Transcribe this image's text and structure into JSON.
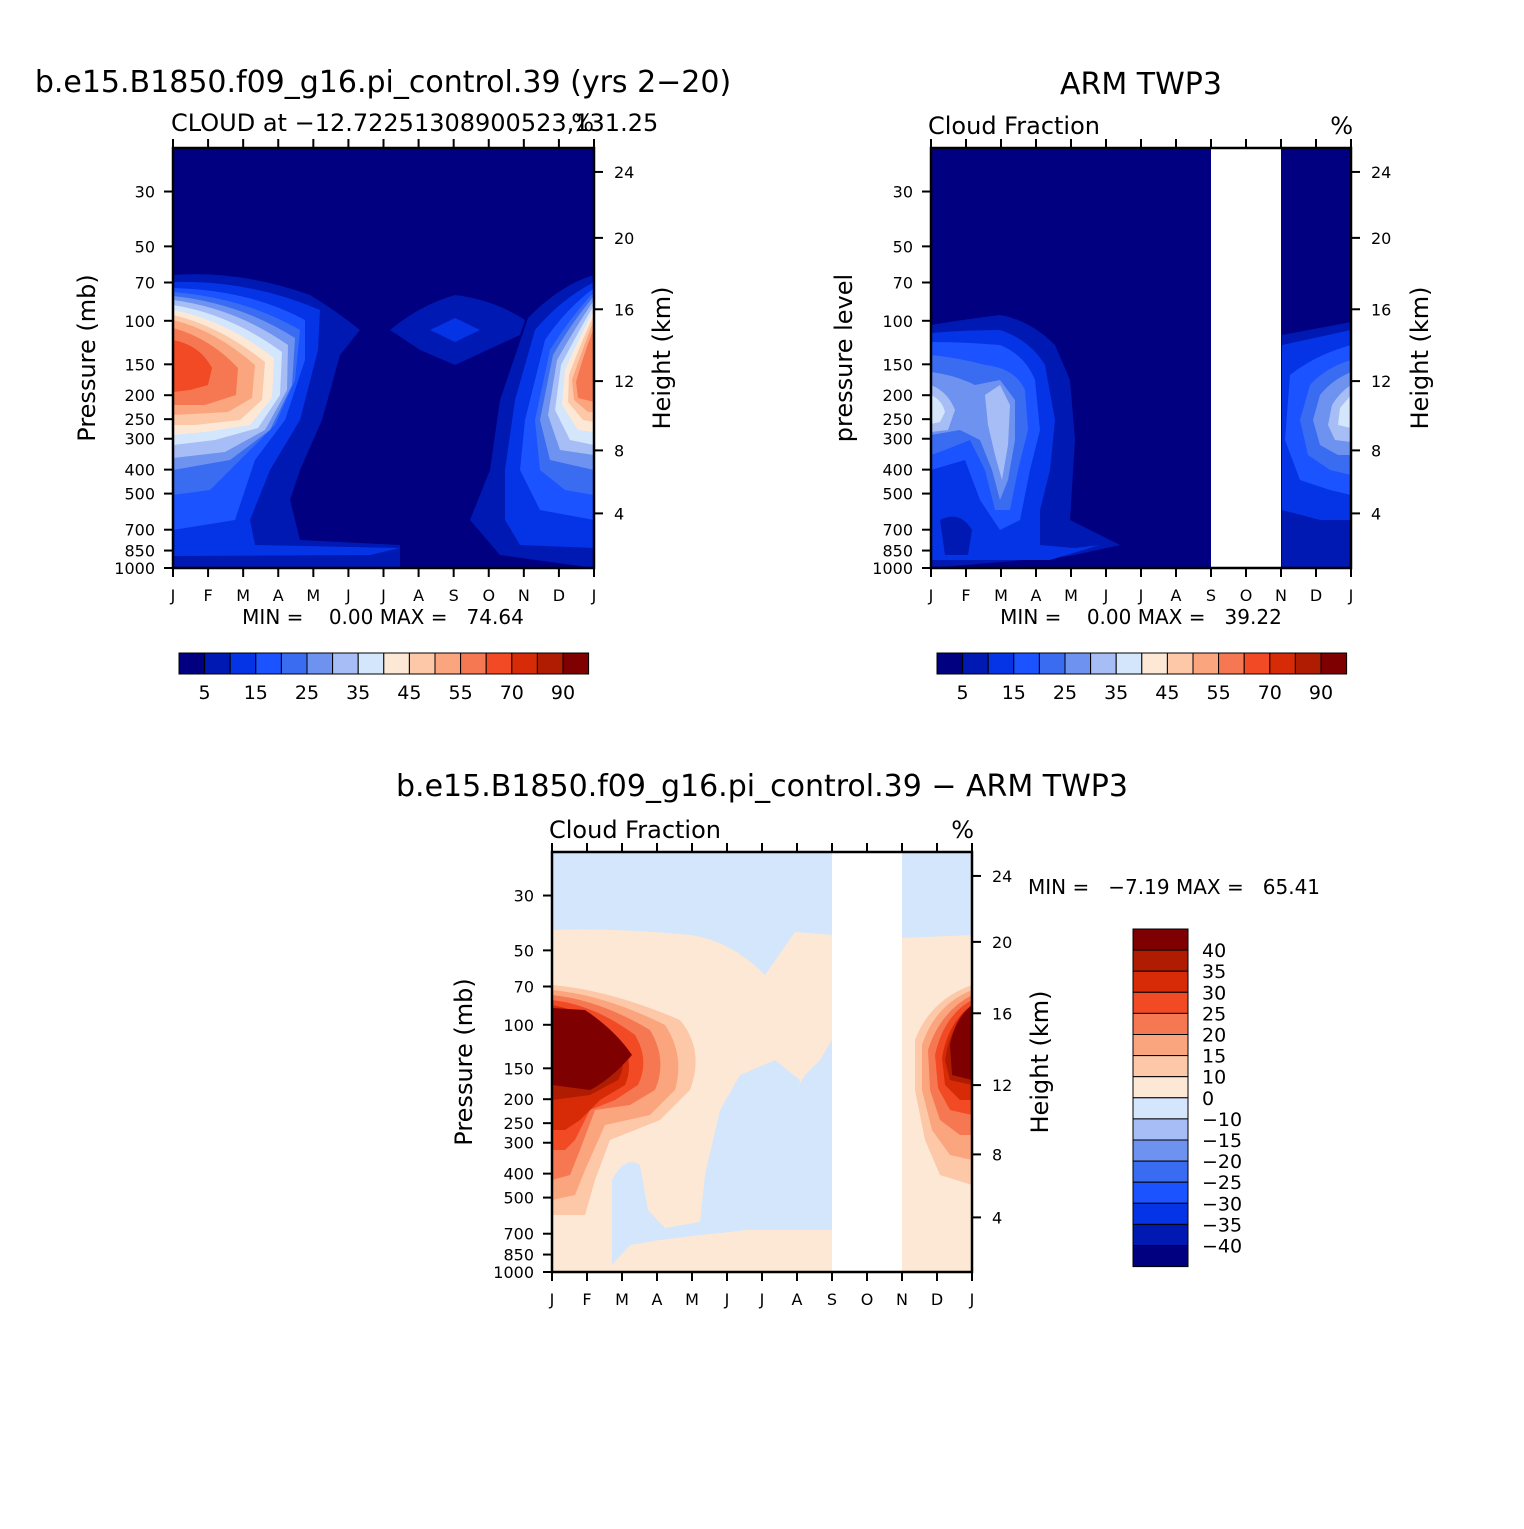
{
  "colors": {
    "seq": [
      "#000080",
      "#0019b3",
      "#0533e6",
      "#1a53ff",
      "#3a6cf2",
      "#6e92f0",
      "#a6bef5",
      "#d4e6fb",
      "#fde8d6",
      "#fcc8a8",
      "#fba57e",
      "#f67853",
      "#f14a25",
      "#d72a07",
      "#b01c02",
      "#7f0000"
    ],
    "diff": [
      "#7f0000",
      "#b01c02",
      "#d72a07",
      "#f14a25",
      "#f67853",
      "#fba57e",
      "#fcc8a8",
      "#fde8d6",
      "#d4e6fb",
      "#a6bef5",
      "#6e92f0",
      "#3a6cf2",
      "#1a53ff",
      "#0533e6",
      "#0019b3",
      "#000080"
    ],
    "missing": "#ffffff"
  },
  "chart_data": [
    {
      "type": "heatmap",
      "title": "b.e15.B1850.f09_g16.pi_control.39 (yrs 2−20)",
      "subtitle_left": "CLOUD at −12.72251308900523,131.25",
      "subtitle_right": "%",
      "x_ticks": [
        "J",
        "F",
        "M",
        "A",
        "M",
        "J",
        "J",
        "A",
        "S",
        "O",
        "N",
        "D",
        "J"
      ],
      "y_label": "Pressure (mb)",
      "y_ticks": [
        "30",
        "50",
        "70",
        "100",
        "150",
        "200",
        "250",
        "300",
        "400",
        "500",
        "700",
        "850",
        "1000"
      ],
      "y2_label": "Height (km)",
      "y2_ticks": [
        "24",
        "20",
        "16",
        "12",
        "8",
        "4"
      ],
      "stats": "MIN =    0.00 MAX =   74.64",
      "colorbar_labels": [
        "5",
        "15",
        "25",
        "35",
        "45",
        "55",
        "70",
        "90"
      ],
      "missing_months": []
    },
    {
      "type": "heatmap",
      "title": "ARM TWP3",
      "subtitle_left": "Cloud Fraction",
      "subtitle_right": "%",
      "x_ticks": [
        "J",
        "F",
        "M",
        "A",
        "M",
        "J",
        "J",
        "A",
        "S",
        "O",
        "N",
        "D",
        "J"
      ],
      "y_label": "pressure level",
      "y_ticks": [
        "30",
        "50",
        "70",
        "100",
        "150",
        "200",
        "250",
        "300",
        "400",
        "500",
        "700",
        "850",
        "1000"
      ],
      "y2_label": "Height (km)",
      "y2_ticks": [
        "24",
        "20",
        "16",
        "12",
        "8",
        "4"
      ],
      "stats": "MIN =    0.00 MAX =   39.22",
      "colorbar_labels": [
        "5",
        "15",
        "25",
        "35",
        "45",
        "55",
        "70",
        "90"
      ],
      "missing_months": [
        "S",
        "O",
        "N"
      ]
    },
    {
      "type": "heatmap",
      "title": "b.e15.B1850.f09_g16.pi_control.39 − ARM TWP3",
      "subtitle_left": "Cloud Fraction",
      "subtitle_right": "%",
      "x_ticks": [
        "J",
        "F",
        "M",
        "A",
        "M",
        "J",
        "J",
        "A",
        "S",
        "O",
        "N",
        "D",
        "J"
      ],
      "y_label": "Pressure (mb)",
      "y_ticks": [
        "30",
        "50",
        "70",
        "100",
        "150",
        "200",
        "250",
        "300",
        "400",
        "500",
        "700",
        "850",
        "1000"
      ],
      "y2_label": "Height (km)",
      "y2_ticks": [
        "24",
        "20",
        "16",
        "12",
        "8",
        "4"
      ],
      "stats": "MIN =   −7.19 MAX =   65.41",
      "colorbar_labels": [
        "40",
        "35",
        "30",
        "25",
        "20",
        "15",
        "10",
        "0",
        "−10",
        "−15",
        "−20",
        "−25",
        "−30",
        "−35",
        "−40"
      ],
      "missing_months": [
        "S",
        "O",
        "N"
      ]
    }
  ]
}
